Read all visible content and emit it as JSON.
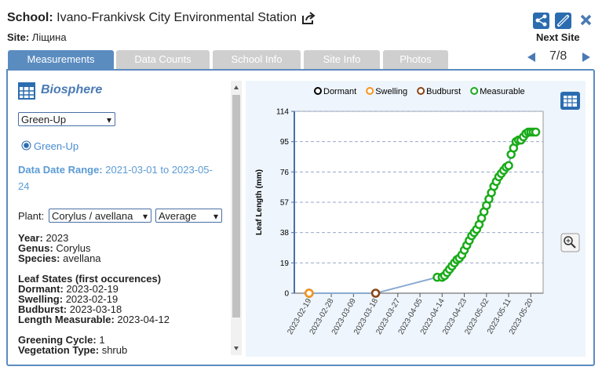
{
  "header": {
    "school_label": "School:",
    "school": "Ivano-Frankivsk City Environmental Station",
    "site_label": "Site:",
    "site": "Ліщина",
    "next_site": "Next Site",
    "site_index": "7/8"
  },
  "tabs": [
    "Measurements",
    "Data Counts",
    "School Info",
    "Site Info",
    "Photos"
  ],
  "panel": {
    "title": "Biosphere",
    "protocol_select": "Green-Up",
    "radio": "Green-Up",
    "date_range_label": "Data Date Range:",
    "date_range": "2021-03-01 to 2023-05-24",
    "plant_label": "Plant:",
    "plant_select": "Corylus / avellana",
    "stat_select": "Average",
    "fields": [
      {
        "label": "Year:",
        "value": "2023"
      },
      {
        "label": "Genus:",
        "value": "Corylus"
      },
      {
        "label": "Species:",
        "value": "avellana"
      }
    ],
    "leaf_states_title": "Leaf States (first occurences)",
    "leaf_states": [
      {
        "label": "Dormant:",
        "value": "2023-02-19"
      },
      {
        "label": "Swelling:",
        "value": "2023-02-19"
      },
      {
        "label": "Budburst:",
        "value": "2023-03-18"
      },
      {
        "label": "Length Measurable:",
        "value": "2023-04-12"
      }
    ],
    "extra": [
      {
        "label": "Greening Cycle:",
        "value": "1"
      },
      {
        "label": "Vegetation Type:",
        "value": "shrub"
      }
    ]
  },
  "chart_data": {
    "type": "line",
    "y_label": "Leaf Length (mm)",
    "xlim": [
      "2023-02-13",
      "2023-05-25"
    ],
    "xticks": [
      "2023-02-19",
      "2023-02-28",
      "2023-03-09",
      "2023-03-18",
      "2023-03-27",
      "2023-04-05",
      "2023-04-14",
      "2023-04-23",
      "2023-05-02",
      "2023-05-11",
      "2023-05-20"
    ],
    "ylim": [
      0,
      114
    ],
    "yticks": [
      0,
      19,
      38,
      57,
      76,
      95,
      114
    ],
    "grid": true,
    "line_color": "#8aaad0",
    "series": [
      {
        "name": "Dormant",
        "color": "#000000",
        "x": [
          "2023-02-19"
        ],
        "values": [
          0
        ]
      },
      {
        "name": "Swelling",
        "color": "#f7941d",
        "x": [
          "2023-02-19"
        ],
        "values": [
          0
        ]
      },
      {
        "name": "Budburst",
        "color": "#8b4513",
        "x": [
          "2023-03-18"
        ],
        "values": [
          0
        ]
      },
      {
        "name": "Measurable",
        "color": "#1aab1a",
        "x": [
          "2023-04-12",
          "2023-04-14",
          "2023-04-15",
          "2023-04-16",
          "2023-04-17",
          "2023-04-18",
          "2023-04-19",
          "2023-04-20",
          "2023-04-21",
          "2023-04-22",
          "2023-04-23",
          "2023-04-24",
          "2023-04-25",
          "2023-04-26",
          "2023-04-27",
          "2023-04-28",
          "2023-04-29",
          "2023-04-30",
          "2023-05-01",
          "2023-05-02",
          "2023-05-03",
          "2023-05-04",
          "2023-05-05",
          "2023-05-06",
          "2023-05-07",
          "2023-05-08",
          "2023-05-09",
          "2023-05-10",
          "2023-05-11",
          "2023-05-12",
          "2023-05-13",
          "2023-05-14",
          "2023-05-15",
          "2023-05-16",
          "2023-05-17",
          "2023-05-18",
          "2023-05-19",
          "2023-05-20",
          "2023-05-21",
          "2023-05-22"
        ],
        "values": [
          10,
          10,
          11,
          13,
          15,
          17,
          19,
          21,
          22,
          24,
          27,
          30,
          33,
          36,
          38,
          40,
          43,
          47,
          51,
          55,
          59,
          63,
          67,
          70,
          73,
          75,
          77,
          79,
          80,
          87,
          91,
          95,
          96,
          96,
          98,
          100,
          101,
          101,
          101,
          101
        ]
      }
    ]
  }
}
